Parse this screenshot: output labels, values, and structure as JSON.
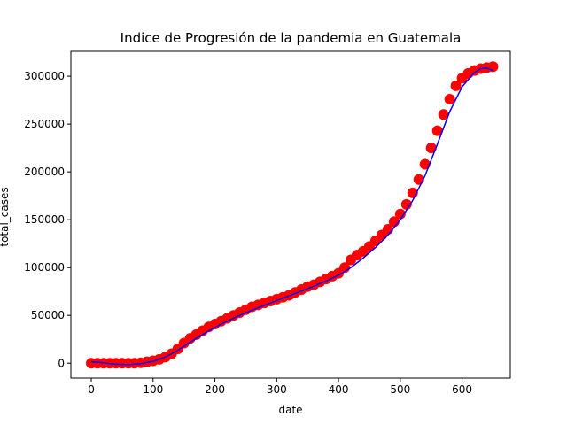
{
  "chart_data": {
    "type": "scatter",
    "title": "Indice de Progresión de la pandemia en Guatemala",
    "xlabel": "date",
    "ylabel": "total_cases",
    "xlim": [
      -33,
      678
    ],
    "ylim": [
      -15500,
      326000
    ],
    "x_ticks": [
      0,
      100,
      200,
      300,
      400,
      500,
      600
    ],
    "y_ticks": [
      0,
      50000,
      100000,
      150000,
      200000,
      250000,
      300000
    ],
    "grid": false,
    "colors": {
      "scatter": "#ff0000",
      "fit_line": "#0000ff"
    },
    "series": [
      {
        "kind": "scatter",
        "x": [
          0,
          10,
          20,
          30,
          40,
          50,
          60,
          70,
          80,
          90,
          100,
          110,
          120,
          130,
          140,
          150,
          160,
          170,
          180,
          190,
          200,
          210,
          220,
          230,
          240,
          250,
          260,
          270,
          280,
          290,
          300,
          310,
          320,
          330,
          340,
          350,
          360,
          370,
          380,
          390,
          400,
          410,
          420,
          430,
          440,
          450,
          460,
          470,
          480,
          490,
          500,
          510,
          520,
          530,
          540,
          550,
          560,
          570,
          580,
          590,
          600,
          610,
          620,
          630,
          640,
          650
        ],
        "y": [
          0,
          0,
          0,
          0,
          0,
          0,
          0,
          0,
          500,
          1500,
          2500,
          4000,
          6500,
          10000,
          15000,
          21000,
          26000,
          30000,
          34000,
          38000,
          41000,
          44000,
          47000,
          50000,
          53000,
          56000,
          59000,
          61000,
          63000,
          65000,
          67000,
          69000,
          71000,
          74000,
          77000,
          80000,
          82000,
          85000,
          88000,
          91000,
          94000,
          100000,
          108000,
          113000,
          117000,
          122000,
          128000,
          134000,
          140000,
          148000,
          156000,
          166000,
          178000,
          192000,
          208000,
          225000,
          243000,
          260000,
          276000,
          290000,
          298000,
          303000,
          306000,
          308000,
          309000,
          310000
        ]
      },
      {
        "kind": "line",
        "x": [
          0,
          20,
          40,
          60,
          80,
          100,
          120,
          140,
          160,
          180,
          200,
          220,
          240,
          260,
          280,
          300,
          320,
          340,
          360,
          380,
          400,
          420,
          440,
          460,
          480,
          500,
          520,
          540,
          560,
          580,
          600,
          620,
          630,
          640,
          650
        ],
        "y": [
          1500,
          500,
          -1000,
          -1500,
          -500,
          2000,
          6500,
          13500,
          22000,
          30000,
          37500,
          44000,
          50000,
          55500,
          60500,
          65500,
          70500,
          75500,
          80500,
          86000,
          92000,
          100000,
          110000,
          121000,
          134000,
          150000,
          170000,
          196000,
          229000,
          263000,
          289000,
          304000,
          308000,
          308500,
          306000
        ]
      }
    ]
  }
}
